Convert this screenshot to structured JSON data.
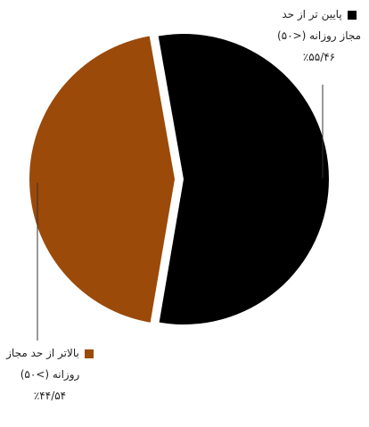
{
  "chart_data": {
    "type": "pie",
    "categories": [
      "پایین تر از حد مجاز روزانه (<۵۰)",
      "بالاتر از حد مجاز روزانه (>۵۰)"
    ],
    "values": [
      55.46,
      44.54
    ],
    "value_labels": [
      "٪۵۵/۴۶",
      "٪۴۴/۵۴"
    ],
    "colors": [
      "#000000",
      "#9b4a0a"
    ]
  }
}
